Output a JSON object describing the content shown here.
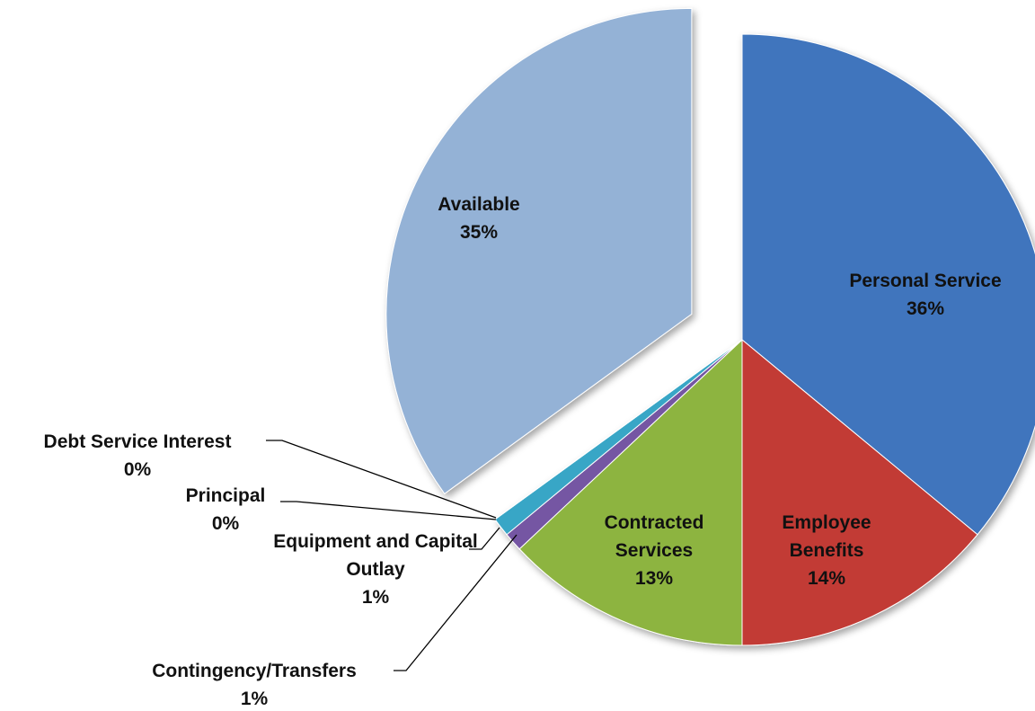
{
  "chart_data": {
    "type": "pie",
    "categories": [
      "Personal Service",
      "Employee Benefits",
      "Contracted Services",
      "Contingency/Transfers",
      "Equipment and Capital Outlay",
      "Principal",
      "Debt Service Interest",
      "Available"
    ],
    "values": [
      36,
      14,
      13,
      1,
      1,
      0,
      0,
      35
    ],
    "value_labels": [
      "36%",
      "14%",
      "13%",
      "1%",
      "1%",
      "0%",
      "0%",
      "35%"
    ],
    "colors": [
      "#3f74bd",
      "#c23a34",
      "#8db43f",
      "#7456a3",
      "#37a6c6",
      "#e38b2f",
      "#2f5b8f",
      "#94b2d6"
    ]
  }
}
